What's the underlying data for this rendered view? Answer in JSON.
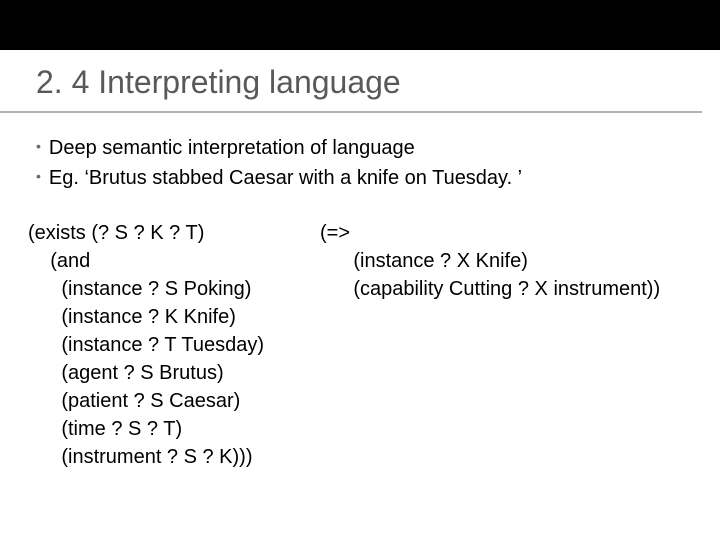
{
  "colors": {
    "topbar": "#000000",
    "title": "#595959",
    "rule": "#b0b0b0",
    "body": "#000000",
    "bullet_dot": "#6a6a6a",
    "background": "#ffffff"
  },
  "typography": {
    "title_fontsize": 32,
    "body_fontsize": 20,
    "code_fontsize": 20,
    "line_height": 28,
    "font_family": "Arial"
  },
  "title": "2. 4 Interpreting language",
  "bullets": [
    "Deep semantic interpretation of language",
    "Eg. ‘Brutus stabbed Caesar with a knife on Tuesday. ’"
  ],
  "code": {
    "left": "(exists (? S ? K ? T)\n    (and\n      (instance ? S Poking)\n      (instance ? K Knife)\n      (instance ? T Tuesday)\n      (agent ? S Brutus)\n      (patient ? S Caesar)\n      (time ? S ? T)\n      (instrument ? S ? K)))",
    "right": "(=>\n      (instance ? X Knife)\n      (capability Cutting ? X instrument))"
  }
}
